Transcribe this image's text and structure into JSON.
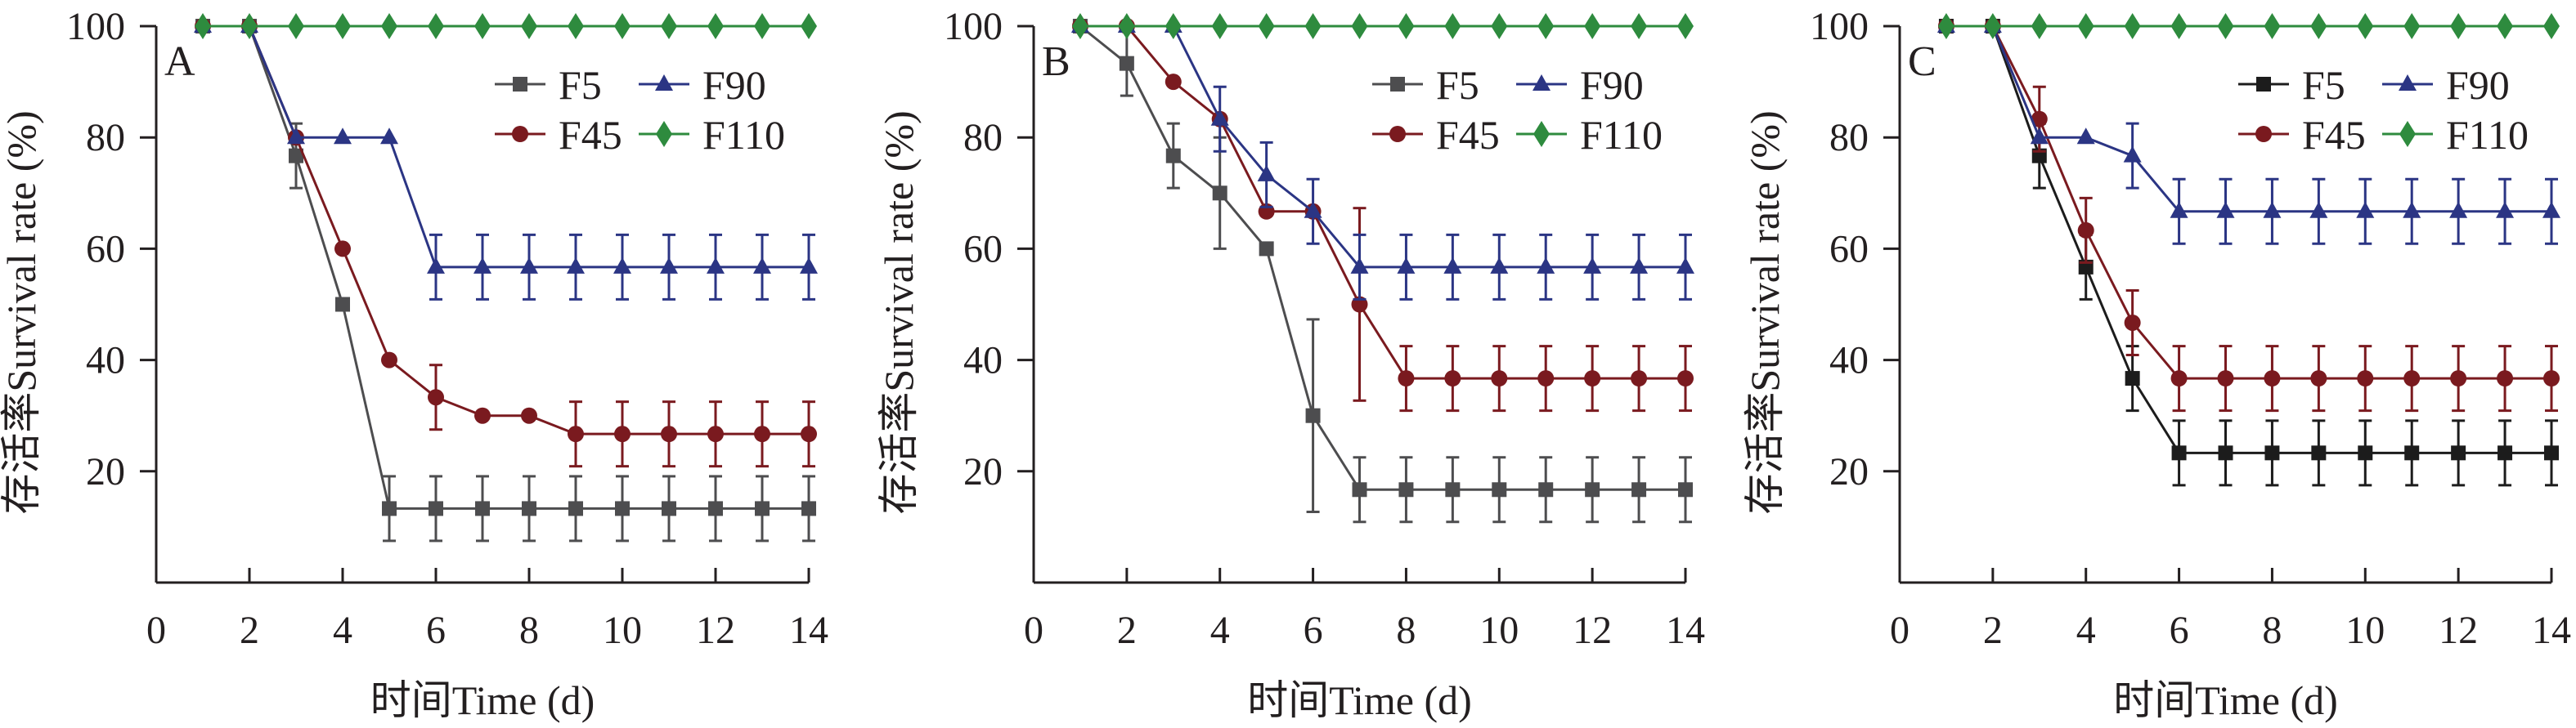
{
  "chart_data": [
    {
      "type": "line",
      "panel_label": "A",
      "xlabel": "时间Time (d)",
      "ylabel": "存活率Survival rate (%)",
      "xlim": [
        0,
        14
      ],
      "ylim": [
        0,
        100
      ],
      "xticks": [
        0,
        2,
        4,
        6,
        8,
        10,
        12,
        14
      ],
      "yticks": [
        20,
        40,
        60,
        80,
        100
      ],
      "grid": false,
      "legend_position": "top-right",
      "x": [
        1,
        2,
        3,
        4,
        5,
        6,
        7,
        8,
        9,
        10,
        11,
        12,
        13,
        14
      ],
      "series": [
        {
          "name": "F5",
          "marker": "square",
          "color": "#4d4d4f",
          "values": [
            100,
            100,
            76.7,
            50,
            13.3,
            13.3,
            13.3,
            13.3,
            13.3,
            13.3,
            13.3,
            13.3,
            13.3,
            13.3
          ],
          "errors": [
            0,
            0,
            5.8,
            0,
            5.8,
            5.8,
            5.8,
            5.8,
            5.8,
            5.8,
            5.8,
            5.8,
            5.8,
            5.8
          ]
        },
        {
          "name": "F90",
          "marker": "triangle",
          "color": "#2b3584",
          "values": [
            100,
            100,
            80,
            80,
            80,
            56.7,
            56.7,
            56.7,
            56.7,
            56.7,
            56.7,
            56.7,
            56.7,
            56.7
          ],
          "errors": [
            0,
            0,
            0,
            0,
            0,
            5.8,
            5.8,
            5.8,
            5.8,
            5.8,
            5.8,
            5.8,
            5.8,
            5.8
          ]
        },
        {
          "name": "F45",
          "marker": "circle",
          "color": "#7a1a1f",
          "values": [
            100,
            100,
            80,
            60,
            40,
            33.3,
            30,
            30,
            26.7,
            26.7,
            26.7,
            26.7,
            26.7,
            26.7
          ],
          "errors": [
            0,
            0,
            0,
            0,
            0,
            5.8,
            0,
            0,
            5.8,
            5.8,
            5.8,
            5.8,
            5.8,
            5.8
          ]
        },
        {
          "name": "F110",
          "marker": "diamond",
          "color": "#2e8b3e",
          "values": [
            100,
            100,
            100,
            100,
            100,
            100,
            100,
            100,
            100,
            100,
            100,
            100,
            100,
            100
          ],
          "errors": [
            0,
            0,
            0,
            0,
            0,
            0,
            0,
            0,
            0,
            0,
            0,
            0,
            0,
            0
          ]
        }
      ]
    },
    {
      "type": "line",
      "panel_label": "B",
      "xlabel": "时间Time (d)",
      "ylabel": "存活率Survival rate (%)",
      "xlim": [
        0,
        14
      ],
      "ylim": [
        0,
        100
      ],
      "xticks": [
        0,
        2,
        4,
        6,
        8,
        10,
        12,
        14
      ],
      "yticks": [
        20,
        40,
        60,
        80,
        100
      ],
      "grid": false,
      "legend_position": "top-right",
      "x": [
        1,
        2,
        3,
        4,
        5,
        6,
        7,
        8,
        9,
        10,
        11,
        12,
        13,
        14
      ],
      "series": [
        {
          "name": "F5",
          "marker": "square",
          "color": "#4d4d4f",
          "values": [
            100,
            93.3,
            76.7,
            70,
            60,
            30,
            16.7,
            16.7,
            16.7,
            16.7,
            16.7,
            16.7,
            16.7,
            16.7
          ],
          "errors": [
            0,
            5.8,
            5.8,
            10,
            0,
            17.3,
            5.8,
            5.8,
            5.8,
            5.8,
            5.8,
            5.8,
            5.8,
            5.8
          ]
        },
        {
          "name": "F90",
          "marker": "triangle",
          "color": "#2b3584",
          "values": [
            100,
            100,
            100,
            83.3,
            73.3,
            66.7,
            56.7,
            56.7,
            56.7,
            56.7,
            56.7,
            56.7,
            56.7,
            56.7
          ],
          "errors": [
            0,
            0,
            0,
            5.8,
            5.8,
            5.8,
            5.8,
            5.8,
            5.8,
            5.8,
            5.8,
            5.8,
            5.8,
            5.8
          ]
        },
        {
          "name": "F45",
          "marker": "circle",
          "color": "#7a1a1f",
          "values": [
            100,
            100,
            90,
            83.3,
            66.7,
            66.7,
            50,
            36.7,
            36.7,
            36.7,
            36.7,
            36.7,
            36.7,
            36.7
          ],
          "errors": [
            0,
            0,
            0,
            0,
            0,
            0,
            17.3,
            5.8,
            5.8,
            5.8,
            5.8,
            5.8,
            5.8,
            5.8
          ]
        },
        {
          "name": "F110",
          "marker": "diamond",
          "color": "#2e8b3e",
          "values": [
            100,
            100,
            100,
            100,
            100,
            100,
            100,
            100,
            100,
            100,
            100,
            100,
            100,
            100
          ],
          "errors": [
            0,
            0,
            0,
            0,
            0,
            0,
            0,
            0,
            0,
            0,
            0,
            0,
            0,
            0
          ]
        }
      ]
    },
    {
      "type": "line",
      "panel_label": "C",
      "xlabel": "时间Time (d)",
      "ylabel": "存活率Survival rate (%)",
      "xlim": [
        0,
        14
      ],
      "ylim": [
        0,
        100
      ],
      "xticks": [
        0,
        2,
        4,
        6,
        8,
        10,
        12,
        14
      ],
      "yticks": [
        20,
        40,
        60,
        80,
        100
      ],
      "grid": false,
      "legend_position": "top-right",
      "x": [
        1,
        2,
        3,
        4,
        5,
        6,
        7,
        8,
        9,
        10,
        11,
        12,
        13,
        14
      ],
      "series": [
        {
          "name": "F5",
          "marker": "square",
          "color": "#1c1c1c",
          "values": [
            100,
            100,
            76.7,
            56.7,
            36.7,
            23.3,
            23.3,
            23.3,
            23.3,
            23.3,
            23.3,
            23.3,
            23.3,
            23.3
          ],
          "errors": [
            0,
            0,
            5.8,
            5.8,
            5.8,
            5.8,
            5.8,
            5.8,
            5.8,
            5.8,
            5.8,
            5.8,
            5.8,
            5.8
          ]
        },
        {
          "name": "F90",
          "marker": "triangle",
          "color": "#2b3584",
          "values": [
            100,
            100,
            80,
            80,
            76.7,
            66.7,
            66.7,
            66.7,
            66.7,
            66.7,
            66.7,
            66.7,
            66.7,
            66.7
          ],
          "errors": [
            0,
            0,
            0,
            0,
            5.8,
            5.8,
            5.8,
            5.8,
            5.8,
            5.8,
            5.8,
            5.8,
            5.8,
            5.8
          ]
        },
        {
          "name": "F45",
          "marker": "circle",
          "color": "#7a1a1f",
          "values": [
            100,
            100,
            83.3,
            63.3,
            46.7,
            36.7,
            36.7,
            36.7,
            36.7,
            36.7,
            36.7,
            36.7,
            36.7,
            36.7
          ],
          "errors": [
            0,
            0,
            5.8,
            5.8,
            5.8,
            5.8,
            5.8,
            5.8,
            5.8,
            5.8,
            5.8,
            5.8,
            5.8,
            5.8
          ]
        },
        {
          "name": "F110",
          "marker": "diamond",
          "color": "#2e8b3e",
          "values": [
            100,
            100,
            100,
            100,
            100,
            100,
            100,
            100,
            100,
            100,
            100,
            100,
            100,
            100
          ],
          "errors": [
            0,
            0,
            0,
            0,
            0,
            0,
            0,
            0,
            0,
            0,
            0,
            0,
            0,
            0
          ]
        }
      ]
    }
  ]
}
